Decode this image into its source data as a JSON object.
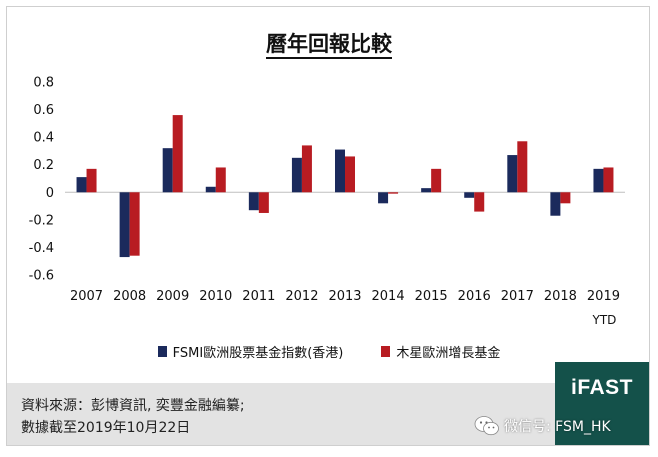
{
  "chart_data": {
    "type": "bar",
    "title": "曆年回報比較",
    "categories": [
      "2007",
      "2008",
      "2009",
      "2010",
      "2011",
      "2012",
      "2013",
      "2014",
      "2015",
      "2016",
      "2017",
      "2018",
      "2019"
    ],
    "category_sublabels": {
      "2019": "YTD"
    },
    "yticks": [
      "0.8",
      "0.6",
      "0.4",
      "0.2",
      "0",
      "-0.2",
      "-0.4",
      "-0.6"
    ],
    "ylim": [
      -0.6,
      0.8
    ],
    "grid": false,
    "legend_position": "bottom",
    "series": [
      {
        "name": "FSMI歐洲股票基金指數(香港)",
        "color": "#1b2a5c",
        "values": [
          0.11,
          -0.47,
          0.32,
          0.04,
          -0.13,
          0.25,
          0.31,
          -0.08,
          0.03,
          -0.04,
          0.27,
          -0.17,
          0.17
        ]
      },
      {
        "name": "木星歐洲增長基金",
        "color": "#b81c22",
        "values": [
          0.17,
          -0.46,
          0.56,
          0.18,
          -0.15,
          0.34,
          0.26,
          -0.01,
          0.17,
          -0.14,
          0.37,
          -0.08,
          0.18
        ]
      }
    ]
  },
  "footer": {
    "source": "資料來源：彭博資訊, 奕豐金融編纂;",
    "date": "數據截至2019年10月22日"
  },
  "logo": {
    "text": "iFAST"
  },
  "watermark": {
    "text": "微信号: FSM_HK",
    "icon": "wechat-icon"
  }
}
